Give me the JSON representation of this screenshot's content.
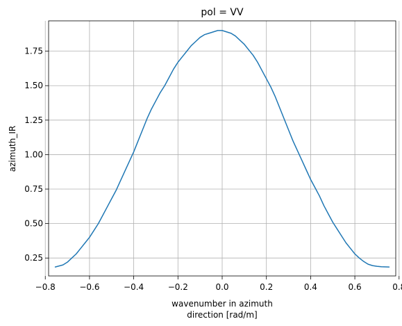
{
  "chart_data": {
    "type": "line",
    "title": "pol = VV",
    "xlabel_lines": [
      "wavenumber in azimuth",
      "direction [rad/m]"
    ],
    "ylabel": "azimuth_IR",
    "xlim": [
      -0.785,
      0.785
    ],
    "ylim": [
      0.12,
      1.97
    ],
    "xticks": [
      -0.8,
      -0.6,
      -0.4,
      -0.2,
      0.0,
      0.2,
      0.4,
      0.6,
      0.8
    ],
    "xtick_labels": [
      "−0.8",
      "−0.6",
      "−0.4",
      "−0.2",
      "0.0",
      "0.2",
      "0.4",
      "0.6",
      "0.8"
    ],
    "yticks": [
      0.25,
      0.5,
      0.75,
      1.0,
      1.25,
      1.5,
      1.75
    ],
    "ytick_labels": [
      "0.25",
      "0.50",
      "0.75",
      "1.00",
      "1.25",
      "1.50",
      "1.75"
    ],
    "grid": true,
    "series": [
      {
        "color": "#1f77b4",
        "x": [
          -0.755,
          -0.72,
          -0.7,
          -0.68,
          -0.66,
          -0.64,
          -0.62,
          -0.6,
          -0.58,
          -0.56,
          -0.54,
          -0.52,
          -0.5,
          -0.48,
          -0.46,
          -0.44,
          -0.42,
          -0.4,
          -0.38,
          -0.36,
          -0.34,
          -0.32,
          -0.3,
          -0.28,
          -0.26,
          -0.24,
          -0.22,
          -0.2,
          -0.18,
          -0.16,
          -0.14,
          -0.12,
          -0.1,
          -0.08,
          -0.06,
          -0.04,
          -0.02,
          0.0,
          0.02,
          0.04,
          0.06,
          0.08,
          0.1,
          0.12,
          0.14,
          0.16,
          0.18,
          0.2,
          0.22,
          0.24,
          0.26,
          0.28,
          0.3,
          0.32,
          0.34,
          0.36,
          0.38,
          0.4,
          0.42,
          0.44,
          0.46,
          0.48,
          0.5,
          0.52,
          0.54,
          0.56,
          0.58,
          0.6,
          0.62,
          0.64,
          0.66,
          0.68,
          0.7,
          0.72,
          0.755
        ],
        "y": [
          0.185,
          0.2,
          0.22,
          0.25,
          0.28,
          0.32,
          0.36,
          0.4,
          0.45,
          0.5,
          0.56,
          0.62,
          0.68,
          0.74,
          0.81,
          0.88,
          0.95,
          1.02,
          1.1,
          1.18,
          1.26,
          1.33,
          1.39,
          1.45,
          1.5,
          1.56,
          1.62,
          1.67,
          1.71,
          1.75,
          1.79,
          1.82,
          1.85,
          1.87,
          1.88,
          1.89,
          1.9,
          1.9,
          1.89,
          1.88,
          1.86,
          1.83,
          1.8,
          1.76,
          1.72,
          1.67,
          1.61,
          1.55,
          1.49,
          1.42,
          1.34,
          1.26,
          1.18,
          1.1,
          1.03,
          0.96,
          0.89,
          0.82,
          0.76,
          0.7,
          0.63,
          0.57,
          0.51,
          0.46,
          0.41,
          0.36,
          0.32,
          0.28,
          0.25,
          0.225,
          0.205,
          0.195,
          0.19,
          0.187,
          0.185
        ]
      }
    ]
  }
}
